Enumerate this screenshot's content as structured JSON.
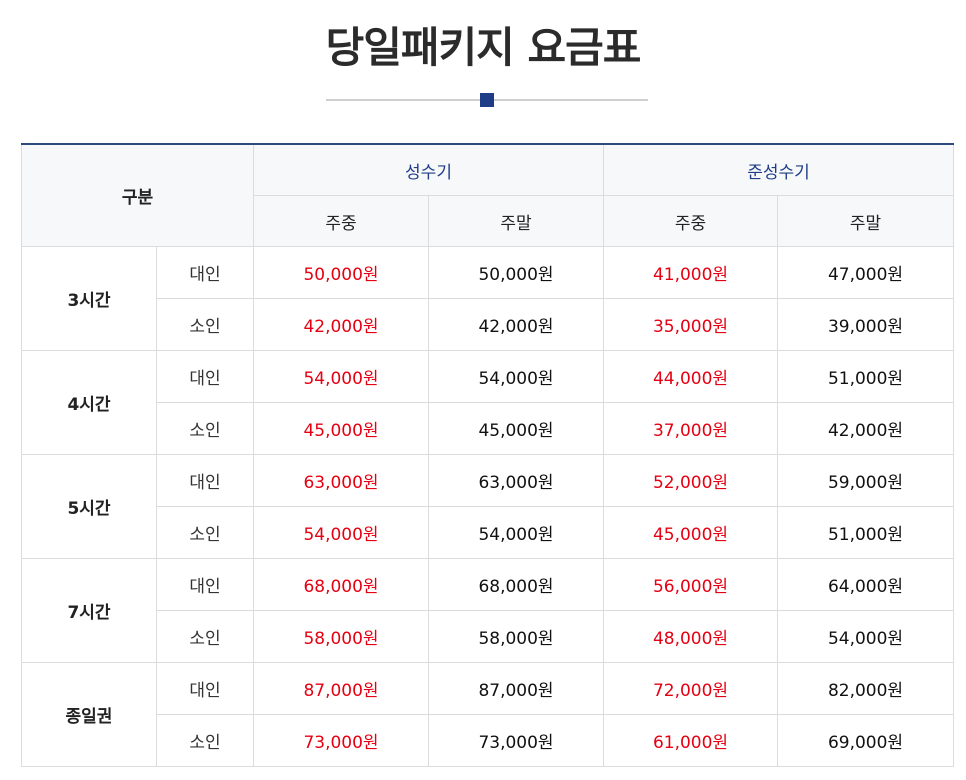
{
  "page": {
    "title": "당일패키지 요금표"
  },
  "table": {
    "header": {
      "category": "구분",
      "seasons": [
        "성수기",
        "준성수기"
      ],
      "days": [
        "주중",
        "주말",
        "주중",
        "주말"
      ]
    },
    "rows": [
      {
        "duration": "3시간",
        "items": [
          {
            "type": "대인",
            "prices": [
              "50,000원",
              "50,000원",
              "41,000원",
              "47,000원"
            ]
          },
          {
            "type": "소인",
            "prices": [
              "42,000원",
              "42,000원",
              "35,000원",
              "39,000원"
            ]
          }
        ]
      },
      {
        "duration": "4시간",
        "items": [
          {
            "type": "대인",
            "prices": [
              "54,000원",
              "54,000원",
              "44,000원",
              "51,000원"
            ]
          },
          {
            "type": "소인",
            "prices": [
              "45,000원",
              "45,000원",
              "37,000원",
              "42,000원"
            ]
          }
        ]
      },
      {
        "duration": "5시간",
        "items": [
          {
            "type": "대인",
            "prices": [
              "63,000원",
              "63,000원",
              "52,000원",
              "59,000원"
            ]
          },
          {
            "type": "소인",
            "prices": [
              "54,000원",
              "54,000원",
              "45,000원",
              "51,000원"
            ]
          }
        ]
      },
      {
        "duration": "7시간",
        "items": [
          {
            "type": "대인",
            "prices": [
              "68,000원",
              "68,000원",
              "56,000원",
              "64,000원"
            ]
          },
          {
            "type": "소인",
            "prices": [
              "58,000원",
              "58,000원",
              "48,000원",
              "54,000원"
            ]
          }
        ]
      },
      {
        "duration": "종일권",
        "items": [
          {
            "type": "대인",
            "prices": [
              "87,000원",
              "87,000원",
              "72,000원",
              "82,000원"
            ]
          },
          {
            "type": "소인",
            "prices": [
              "73,000원",
              "73,000원",
              "61,000원",
              "69,000원"
            ]
          }
        ]
      }
    ]
  },
  "colors": {
    "accent": "#1f3c88",
    "weekday_price": "#e60012",
    "weekend_price": "#111111"
  }
}
